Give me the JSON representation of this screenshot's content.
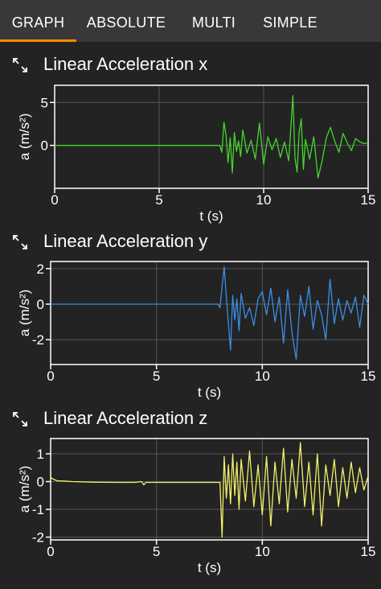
{
  "tabs": [
    {
      "label": "GRAPH",
      "active": true
    },
    {
      "label": "ABSOLUTE",
      "active": false
    },
    {
      "label": "MULTI",
      "active": false
    },
    {
      "label": "SIMPLE",
      "active": false
    }
  ],
  "icons": {
    "expand": "expand-arrows-icon"
  },
  "colors": {
    "tab_indicator": "#ff8a00",
    "x": "#44d62c",
    "y": "#3a8ee6",
    "z": "#f2f06a"
  },
  "panels": [
    {
      "title": "Linear Acceleration x",
      "icon": "expand-arrows-icon"
    },
    {
      "title": "Linear Acceleration y",
      "icon": "expand-arrows-icon"
    },
    {
      "title": "Linear Acceleration z",
      "icon": "expand-arrows-icon"
    }
  ],
  "chart_data": [
    {
      "type": "line",
      "title": "Linear Acceleration x",
      "xlabel": "t (s)",
      "ylabel": "a (m/s²)",
      "xlim": [
        0,
        15
      ],
      "ylim": [
        -5,
        7
      ],
      "xticks": [
        0,
        5,
        10,
        15
      ],
      "yticks": [
        0,
        5
      ],
      "xtick_labels": [
        "0",
        "5",
        "10",
        "15"
      ],
      "ytick_labels": [
        "0",
        "5"
      ],
      "grid": true,
      "color": "#44d62c",
      "series": [
        {
          "x": [
            0,
            1,
            2,
            3,
            4,
            5,
            6,
            7,
            7.9,
            8.0,
            8.1,
            8.2,
            8.3,
            8.4,
            8.5,
            8.6,
            8.7,
            8.8,
            8.9,
            9.0,
            9.2,
            9.4,
            9.6,
            9.8,
            10.0,
            10.2,
            10.4,
            10.6,
            10.8,
            11.0,
            11.2,
            11.4,
            11.5,
            11.6,
            11.7,
            11.8,
            11.9,
            12.0,
            12.2,
            12.4,
            12.6,
            12.8,
            13.0,
            13.2,
            13.4,
            13.6,
            13.8,
            14.0,
            14.2,
            14.4,
            14.6,
            14.8,
            15.0
          ],
          "y": [
            0,
            0,
            0,
            0,
            0,
            0,
            0,
            0,
            0,
            -0.8,
            2.7,
            1.2,
            -2.0,
            0.9,
            -3.2,
            1.5,
            -0.7,
            0.5,
            -1.3,
            1.8,
            -0.9,
            0.6,
            -1.6,
            2.6,
            -2.2,
            1.0,
            -0.5,
            0.8,
            -1.4,
            0.4,
            -1.8,
            5.8,
            -1.5,
            -3.1,
            1.6,
            3.1,
            -2.8,
            0.7,
            -1.6,
            1.0,
            -3.8,
            -1.8,
            0.9,
            2.1,
            0.5,
            -0.8,
            1.4,
            0.3,
            -0.6,
            0.8,
            0.4,
            0.2,
            0.3
          ]
        }
      ]
    },
    {
      "type": "line",
      "title": "Linear Acceleration y",
      "xlabel": "t (s)",
      "ylabel": "a (m/s²)",
      "xlim": [
        0,
        15
      ],
      "ylim": [
        -3.4,
        2.4
      ],
      "xticks": [
        0,
        5,
        10,
        15
      ],
      "yticks": [
        -2,
        0,
        2
      ],
      "xtick_labels": [
        "0",
        "5",
        "10",
        "15"
      ],
      "ytick_labels": [
        "-2",
        "0",
        "2"
      ],
      "grid": true,
      "color": "#3a8ee6",
      "series": [
        {
          "x": [
            0,
            1,
            2,
            3,
            4,
            5,
            6,
            7,
            7.9,
            8.0,
            8.1,
            8.2,
            8.3,
            8.4,
            8.5,
            8.6,
            8.7,
            8.8,
            8.9,
            9.0,
            9.2,
            9.4,
            9.6,
            9.8,
            10.0,
            10.2,
            10.4,
            10.6,
            10.8,
            11.0,
            11.2,
            11.4,
            11.6,
            11.8,
            12.0,
            12.2,
            12.4,
            12.6,
            12.8,
            13.0,
            13.2,
            13.4,
            13.6,
            13.8,
            14.0,
            14.2,
            14.4,
            14.6,
            14.8,
            15.0
          ],
          "y": [
            0,
            0,
            0,
            0,
            0,
            0,
            0,
            0,
            0,
            -0.2,
            1.0,
            2.1,
            0.4,
            -1.1,
            -2.6,
            0.5,
            -0.9,
            0.3,
            -1.5,
            0.6,
            -0.8,
            -0.2,
            -1.2,
            0.3,
            0.7,
            -0.6,
            0.9,
            -1.0,
            0.4,
            -2.2,
            0.8,
            -1.6,
            -3.1,
            0.5,
            -0.7,
            1.0,
            -1.4,
            0.2,
            -0.6,
            -2.0,
            1.4,
            -1.1,
            0.3,
            -0.9,
            0.2,
            -0.5,
            0.4,
            -1.3,
            0.5,
            0.0
          ]
        }
      ]
    },
    {
      "type": "line",
      "title": "Linear Acceleration z",
      "xlabel": "t (s)",
      "ylabel": "a (m/s²)",
      "xlim": [
        0,
        15
      ],
      "ylim": [
        -2.1,
        1.55
      ],
      "xticks": [
        0,
        5,
        10,
        15
      ],
      "yticks": [
        -2,
        -1,
        0,
        1
      ],
      "xtick_labels": [
        "0",
        "5",
        "10",
        "15"
      ],
      "ytick_labels": [
        "-2",
        "-1",
        "0",
        "1"
      ],
      "grid": true,
      "color": "#f2f06a",
      "series": [
        {
          "x": [
            0,
            0.1,
            0.3,
            0.6,
            1,
            2,
            3,
            4,
            4.3,
            4.4,
            4.5,
            5,
            6,
            7,
            8.0,
            8.1,
            8.2,
            8.3,
            8.4,
            8.5,
            8.6,
            8.7,
            8.8,
            8.9,
            9.0,
            9.2,
            9.4,
            9.6,
            9.8,
            10.0,
            10.2,
            10.4,
            10.6,
            10.8,
            11.0,
            11.2,
            11.4,
            11.6,
            11.8,
            12.0,
            12.2,
            12.4,
            12.6,
            12.8,
            13.0,
            13.2,
            13.4,
            13.6,
            13.8,
            14.0,
            14.2,
            14.4,
            14.6,
            14.8,
            15.0
          ],
          "y": [
            0.15,
            0.1,
            0.03,
            0.02,
            0,
            -0.02,
            -0.03,
            -0.03,
            0,
            -0.12,
            -0.03,
            -0.03,
            -0.03,
            -0.03,
            -0.03,
            -2.0,
            0.9,
            -0.6,
            0.6,
            -0.8,
            1.0,
            -0.5,
            0.7,
            -1.0,
            0.8,
            -0.7,
            1.1,
            -0.9,
            0.6,
            -1.2,
            0.9,
            -1.6,
            0.7,
            -0.8,
            1.2,
            -1.1,
            0.8,
            -0.6,
            1.4,
            -0.9,
            0.7,
            -1.2,
            1.0,
            -1.6,
            0.6,
            -0.5,
            0.8,
            -0.9,
            0.5,
            -0.6,
            0.7,
            -0.4,
            0.5,
            -0.3,
            0.2
          ]
        }
      ]
    }
  ]
}
